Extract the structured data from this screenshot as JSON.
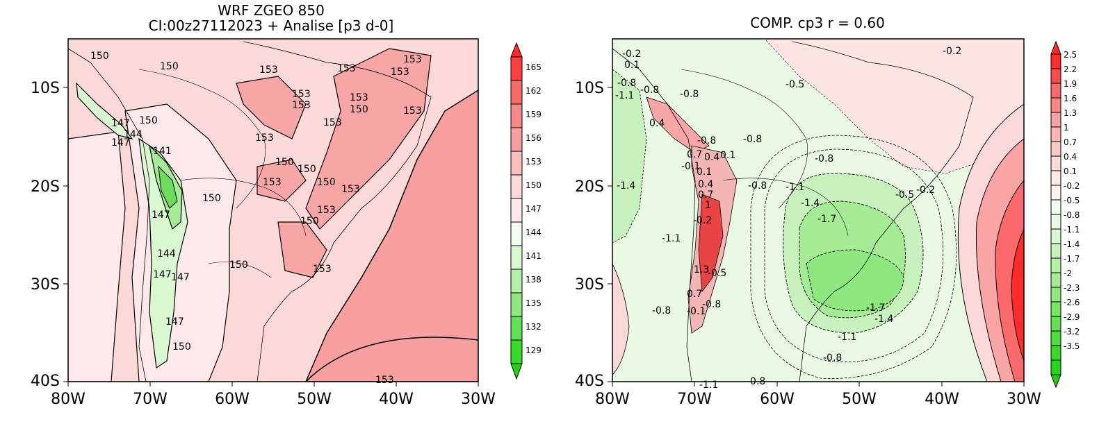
{
  "panels": [
    {
      "title_line1": "WRF ZGEO 850",
      "title_line2": "CI:00z27112023 + Analise  [p3 d-0]",
      "x_ticks": [
        "80W",
        "70W",
        "60W",
        "50W",
        "40W",
        "30W"
      ],
      "y_ticks": [
        "10S",
        "20S",
        "30S",
        "40S"
      ],
      "colorbar": [
        "165",
        "162",
        "159",
        "156",
        "153",
        "150",
        "147",
        "144",
        "141",
        "138",
        "135",
        "132",
        "129"
      ],
      "contour_labels": [
        "150",
        "150",
        "153",
        "153",
        "153",
        "153",
        "153",
        "153",
        "153",
        "150",
        "153",
        "153",
        "147",
        "144",
        "150",
        "147",
        "141",
        "153",
        "150",
        "150",
        "153",
        "150",
        "153",
        "150",
        "147",
        "153",
        "150",
        "144",
        "147",
        "147",
        "147",
        "150",
        "150",
        "153",
        "153"
      ]
    },
    {
      "title": "COMP. cp3  r =  0.60",
      "x_ticks": [
        "80W",
        "70W",
        "60W",
        "50W",
        "40W",
        "30W"
      ],
      "y_ticks": [
        "10S",
        "20S",
        "30S",
        "40S"
      ],
      "colorbar": [
        "2.5",
        "2.2",
        "1.9",
        "1.6",
        "1.3",
        "1",
        "0.7",
        "0.4",
        "0.1",
        "-0.2",
        "-0.5",
        "-0.8",
        "-1.1",
        "-1.4",
        "-1.7",
        "-2",
        "-2.3",
        "-2.6",
        "-2.9",
        "-3.2",
        "-3.5"
      ],
      "contour_labels": [
        "-0.2",
        "0.1",
        "-0.8",
        "-1.1",
        "-0.8",
        "-0.8",
        "0.4",
        "-0.8",
        "0.7",
        "0.4",
        "0.1",
        "-0.1",
        "0.1",
        "-0.8",
        "0.4",
        "0.7",
        "1",
        "-0.8",
        "-1.1",
        "-1.4",
        "-1.7",
        "-0.2",
        "-1.1",
        "1.3",
        "-0.5",
        "0.7",
        "-0.8",
        "-0.1",
        "-0.8",
        "-1.7",
        "-1.4",
        "-1.1",
        "-0.8",
        "-1.1",
        "-0.8",
        "-0.5",
        "-0.2",
        "-0.8",
        "-1.4",
        "-0.5",
        "-0.2"
      ]
    }
  ]
}
